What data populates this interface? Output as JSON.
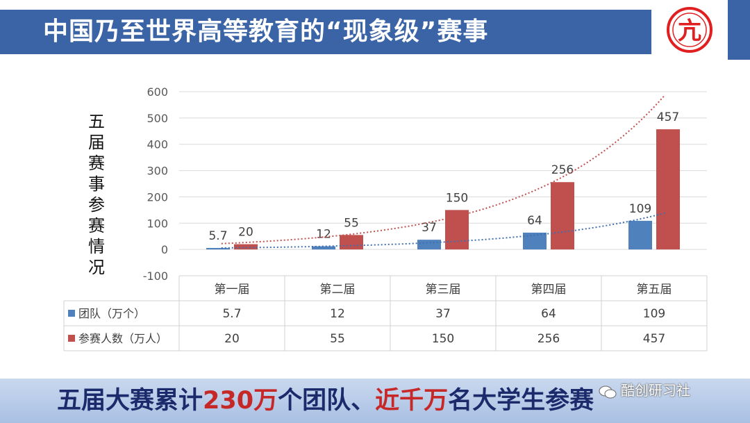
{
  "title": "中国乃至世界高等教育的“现象级”赛事",
  "y_axis_label": "五届赛事参赛情况",
  "chart_data": {
    "type": "bar",
    "categories": [
      "第一届",
      "第二届",
      "第三届",
      "第四届",
      "第五届"
    ],
    "series": [
      {
        "name": "团队（万个）",
        "values": [
          5.7,
          12,
          37,
          64,
          109
        ],
        "color": "#4f81bd",
        "labels": [
          "5.7",
          "12",
          "37",
          "64",
          "109"
        ]
      },
      {
        "name": "参赛人数（万人）",
        "values": [
          20,
          55,
          150,
          256,
          457
        ],
        "color": "#c0504d",
        "labels": [
          "20",
          "55",
          "150",
          "256",
          "457"
        ]
      }
    ],
    "ylim": [
      -100,
      600
    ],
    "yticks": [
      -100,
      0,
      100,
      200,
      300,
      400,
      500,
      600
    ],
    "grid": true,
    "trendlines": "exponential, dotted, one per series",
    "data_table": true
  },
  "footer": {
    "part1": "五届大赛累计",
    "hl1": "230万",
    "part2": "个团队、",
    "hl2": "近千万",
    "part3": "名大学生参赛"
  },
  "watermark": "酷创研习社",
  "logo": {
    "glyph": "亢",
    "color": "#e02020"
  }
}
